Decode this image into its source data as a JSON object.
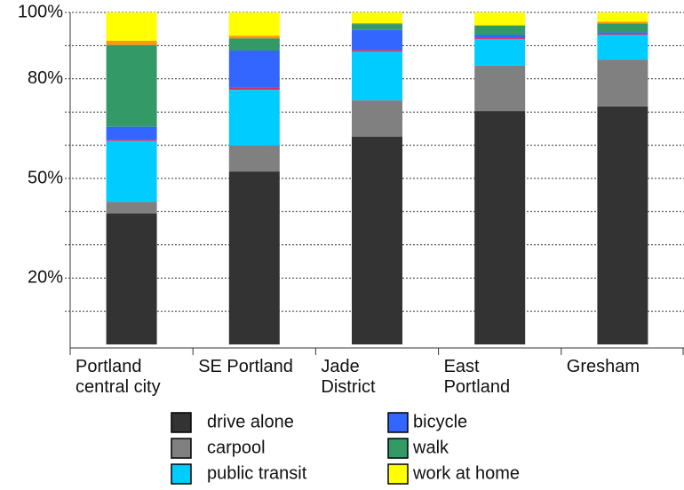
{
  "chart_data": {
    "type": "stacked_bar",
    "categories": [
      "Portland\ncentral city",
      "SE Portland",
      "Jade\nDistrict",
      "East\nPortland",
      "Gresham"
    ],
    "series": [
      {
        "name": "drive alone",
        "color": "#333333",
        "values": [
          39.5,
          52.1,
          62.6,
          70.3,
          71.7
        ]
      },
      {
        "name": "carpool",
        "color": "#808080",
        "values": [
          3.5,
          7.8,
          10.9,
          13.7,
          14.1
        ]
      },
      {
        "name": "public transit",
        "color": "#00ccff",
        "values": [
          18.3,
          16.8,
          14.7,
          8,
          7.5
        ]
      },
      {
        "color": "#cc3366",
        "values": [
          0.3,
          0.6,
          0.5,
          0.5,
          0.3
        ]
      },
      {
        "name": "bicycle",
        "color": "#3366ff",
        "values": [
          4,
          11.2,
          6,
          0.8,
          0.4
        ]
      },
      {
        "name": "walk",
        "color": "#339966",
        "values": [
          24.6,
          3.7,
          1.8,
          2.7,
          2.7
        ]
      },
      {
        "color": "#ff9900",
        "values": [
          1.3,
          0.8,
          0.3,
          0.2,
          0.5
        ]
      },
      {
        "name": "work at home",
        "color": "#ffff00",
        "values": [
          8.5,
          7,
          3.2,
          3.8,
          2.8
        ]
      }
    ],
    "ylim": [
      0,
      100
    ],
    "yticks": [
      {
        "value": 10,
        "label": null
      },
      {
        "value": 20,
        "label": "20%"
      },
      {
        "value": 30,
        "label": null
      },
      {
        "value": 40,
        "label": null
      },
      {
        "value": 50,
        "label": "50%"
      },
      {
        "value": 60,
        "label": null
      },
      {
        "value": 70,
        "label": null
      },
      {
        "value": 80,
        "label": "80%"
      },
      {
        "value": 90,
        "label": null
      },
      {
        "value": 100,
        "label": "100%"
      }
    ],
    "grid": true
  }
}
